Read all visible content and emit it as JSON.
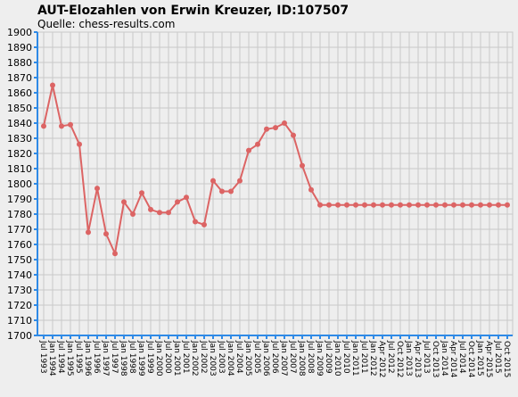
{
  "chart_data": {
    "type": "line",
    "title": "AUT-Elozahlen von Erwin Kreuzer, ID:107507",
    "subtitle": "Quelle: chess-results.com",
    "categories": [
      "Jul 1993",
      "Jan 1994",
      "Jul 1994",
      "Jan 1995",
      "Jul 1995",
      "Jan 1996",
      "Jul 1996",
      "Jan 1997",
      "Jul 1997",
      "Jan 1998",
      "Jul 1998",
      "Jan 1999",
      "Jul 1999",
      "Jan 2000",
      "Jul 2000",
      "Jan 2001",
      "Jul 2001",
      "Jan 2002",
      "Jul 2002",
      "Jan 2003",
      "Jul 2003",
      "Jan 2004",
      "Jul 2004",
      "Jan 2005",
      "Jul 2005",
      "Jan 2006",
      "Jul 2006",
      "Jan 2007",
      "Jul 2007",
      "Jan 2008",
      "Jul 2008",
      "Jan 2009",
      "Jul 2009",
      "Jan 2010",
      "Jul 2010",
      "Jan 2011",
      "Jul 2011",
      "Jan 2012",
      "Apr 2012",
      "Jul 2012",
      "Oct 2012",
      "Jan 2013",
      "Apr 2013",
      "Jul 2013",
      "Oct 2013",
      "Jan 2014",
      "Apr 2014",
      "Jul 2014",
      "Oct 2014",
      "Jan 2015",
      "Apr 2015",
      "Jul 2015",
      "Oct 2015"
    ],
    "values": [
      1838,
      1865,
      1838,
      1839,
      1826,
      1768,
      1797,
      1767,
      1754,
      1788,
      1780,
      1794,
      1783,
      1781,
      1781,
      1788,
      1791,
      1775,
      1773,
      1802,
      1795,
      1795,
      1802,
      1822,
      1826,
      1836,
      1837,
      1840,
      1832,
      1812,
      1796,
      1786,
      1786,
      1786,
      1786,
      1786,
      1786,
      1786,
      1786,
      1786,
      1786,
      1786,
      1786,
      1786,
      1786,
      1786,
      1786,
      1786,
      1786,
      1786,
      1786,
      1786,
      1786
    ],
    "color": "#dc6464",
    "axis_color": "#2f8ae6",
    "ylim": [
      1700,
      1900
    ],
    "yticks": [
      1700,
      1710,
      1720,
      1730,
      1740,
      1750,
      1760,
      1770,
      1780,
      1790,
      1800,
      1810,
      1820,
      1830,
      1840,
      1850,
      1860,
      1870,
      1880,
      1890,
      1900
    ],
    "grid": true
  }
}
